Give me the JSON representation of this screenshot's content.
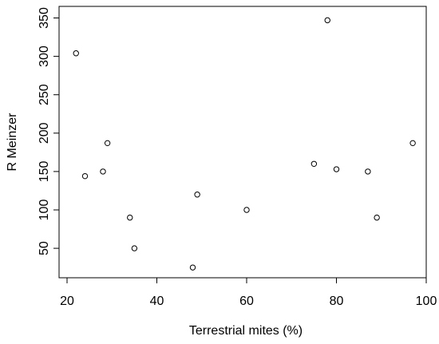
{
  "chart_data": {
    "type": "scatter",
    "xlabel": "Terrestrial mites (%)",
    "ylabel": "R Meinzer",
    "xlim": [
      20,
      100
    ],
    "ylim": [
      10,
      360
    ],
    "x_ticks": [
      20,
      40,
      60,
      80,
      100
    ],
    "y_ticks": [
      50,
      100,
      150,
      200,
      250,
      300,
      350
    ],
    "grid": false,
    "legend": "none",
    "marker": "open-circle",
    "points": [
      {
        "x": 22,
        "y": 304
      },
      {
        "x": 24,
        "y": 144
      },
      {
        "x": 28,
        "y": 150
      },
      {
        "x": 29,
        "y": 187
      },
      {
        "x": 34,
        "y": 90
      },
      {
        "x": 35,
        "y": 50
      },
      {
        "x": 48,
        "y": 25
      },
      {
        "x": 49,
        "y": 120
      },
      {
        "x": 60,
        "y": 100
      },
      {
        "x": 75,
        "y": 160
      },
      {
        "x": 78,
        "y": 347
      },
      {
        "x": 80,
        "y": 153
      },
      {
        "x": 87,
        "y": 150
      },
      {
        "x": 89,
        "y": 90
      },
      {
        "x": 97,
        "y": 187
      }
    ]
  }
}
